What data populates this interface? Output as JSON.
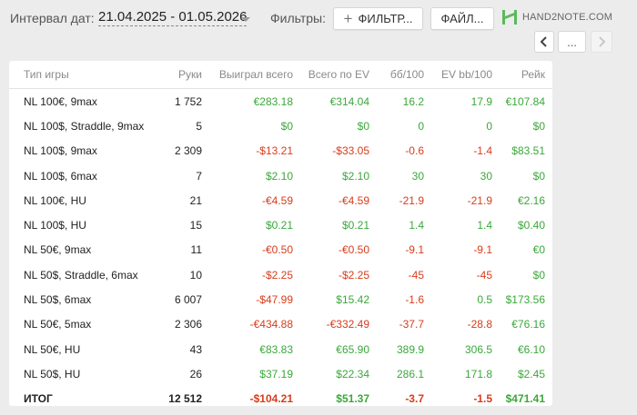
{
  "header": {
    "date_label": "Интервал дат:",
    "date_range": "21.04.2025 - 01.05.2026",
    "filters_label": "Фильтры:",
    "filter_button": "ФИЛЬТР...",
    "file_button": "ФАЙЛ...",
    "logo_text": "HAND2NOTE.COM",
    "more_button": "...",
    "colors": {
      "positive": "#3aa83a",
      "negative": "#d83c1c",
      "logo_green": "#5cb85c"
    }
  },
  "table": {
    "columns": [
      "Тип игры",
      "Руки",
      "Выиграл всего",
      "Всего по EV",
      "бб/100",
      "EV bb/100",
      "Рейк"
    ],
    "rows": [
      {
        "game": "NL 100€, 9max",
        "hands": "1 752",
        "won": "€283.18",
        "ev": "€314.04",
        "bb100": "16.2",
        "evbb100": "17.9",
        "rake": "€107.84"
      },
      {
        "game": "NL 100$, Straddle, 9max",
        "hands": "5",
        "won": "$0",
        "ev": "$0",
        "bb100": "0",
        "evbb100": "0",
        "rake": "$0"
      },
      {
        "game": "NL 100$, 9max",
        "hands": "2 309",
        "won": "-$13.21",
        "ev": "-$33.05",
        "bb100": "-0.6",
        "evbb100": "-1.4",
        "rake": "$83.51"
      },
      {
        "game": "NL 100$, 6max",
        "hands": "7",
        "won": "$2.10",
        "ev": "$2.10",
        "bb100": "30",
        "evbb100": "30",
        "rake": "$0"
      },
      {
        "game": "NL 100€, HU",
        "hands": "21",
        "won": "-€4.59",
        "ev": "-€4.59",
        "bb100": "-21.9",
        "evbb100": "-21.9",
        "rake": "€2.16"
      },
      {
        "game": "NL 100$, HU",
        "hands": "15",
        "won": "$0.21",
        "ev": "$0.21",
        "bb100": "1.4",
        "evbb100": "1.4",
        "rake": "$0.40"
      },
      {
        "game": "NL 50€, 9max",
        "hands": "11",
        "won": "-€0.50",
        "ev": "-€0.50",
        "bb100": "-9.1",
        "evbb100": "-9.1",
        "rake": "€0"
      },
      {
        "game": "NL 50$, Straddle, 6max",
        "hands": "10",
        "won": "-$2.25",
        "ev": "-$2.25",
        "bb100": "-45",
        "evbb100": "-45",
        "rake": "$0"
      },
      {
        "game": "NL 50$, 6max",
        "hands": "6 007",
        "won": "-$47.99",
        "ev": "$15.42",
        "bb100": "-1.6",
        "evbb100": "0.5",
        "rake": "$173.56"
      },
      {
        "game": "NL 50€, 5max",
        "hands": "2 306",
        "won": "-€434.88",
        "ev": "-€332.49",
        "bb100": "-37.7",
        "evbb100": "-28.8",
        "rake": "€76.16"
      },
      {
        "game": "NL 50€, HU",
        "hands": "43",
        "won": "€83.83",
        "ev": "€65.90",
        "bb100": "389.9",
        "evbb100": "306.5",
        "rake": "€6.10"
      },
      {
        "game": "NL 50$, HU",
        "hands": "26",
        "won": "$37.19",
        "ev": "$22.34",
        "bb100": "286.1",
        "evbb100": "171.8",
        "rake": "$2.45"
      }
    ],
    "total": {
      "game": "ИТОГ",
      "hands": "12 512",
      "won": "-$104.21",
      "ev": "$51.37",
      "bb100": "-3.7",
      "evbb100": "-1.5",
      "rake": "$471.41"
    }
  }
}
